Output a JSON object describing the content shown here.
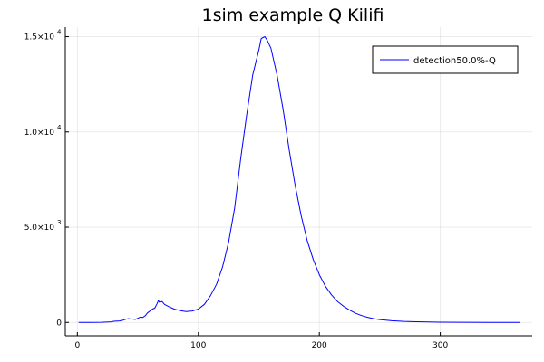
{
  "chart_data": {
    "type": "line",
    "title": "1sim example Q Kilifi",
    "xlabel": "",
    "ylabel": "",
    "xlim": [
      -10,
      376
    ],
    "ylim": [
      -700,
      15500
    ],
    "grid": true,
    "legend_position": "top-right",
    "xticks": [
      {
        "value": 0,
        "label": "0"
      },
      {
        "value": 100,
        "label": "100"
      },
      {
        "value": 200,
        "label": "200"
      },
      {
        "value": 300,
        "label": "300"
      }
    ],
    "yticks": [
      {
        "value": 0,
        "base": "0",
        "exp": ""
      },
      {
        "value": 5000,
        "base": "5.0×10",
        "exp": "3"
      },
      {
        "value": 10000,
        "base": "1.0×10",
        "exp": "4"
      },
      {
        "value": 15000,
        "base": "1.5×10",
        "exp": "4"
      }
    ],
    "series": [
      {
        "name": "detection50.0%-Q",
        "color": "#0000ff",
        "x": [
          1,
          10,
          20,
          28,
          30,
          35,
          38,
          40,
          42,
          45,
          48,
          50,
          52,
          54,
          56,
          58,
          60,
          62,
          64,
          66,
          67,
          68,
          70,
          72,
          75,
          80,
          85,
          90,
          95,
          100,
          105,
          110,
          115,
          120,
          125,
          130,
          135,
          140,
          145,
          150,
          152,
          155,
          157,
          160,
          165,
          170,
          175,
          180,
          185,
          190,
          195,
          200,
          205,
          210,
          215,
          220,
          225,
          230,
          235,
          240,
          245,
          250,
          260,
          270,
          280,
          290,
          300,
          320,
          340,
          366
        ],
        "y": [
          0,
          0,
          10,
          30,
          60,
          80,
          120,
          170,
          200,
          180,
          160,
          220,
          280,
          260,
          350,
          500,
          600,
          700,
          750,
          1000,
          1150,
          1050,
          1100,
          950,
          850,
          700,
          620,
          570,
          600,
          700,
          950,
          1400,
          2000,
          2900,
          4200,
          6000,
          8600,
          10900,
          13000,
          14300,
          14900,
          15000,
          14800,
          14400,
          13000,
          11200,
          9100,
          7200,
          5600,
          4300,
          3300,
          2500,
          1900,
          1450,
          1100,
          850,
          650,
          480,
          360,
          270,
          200,
          150,
          90,
          55,
          35,
          22,
          14,
          8,
          4,
          2
        ]
      }
    ]
  }
}
